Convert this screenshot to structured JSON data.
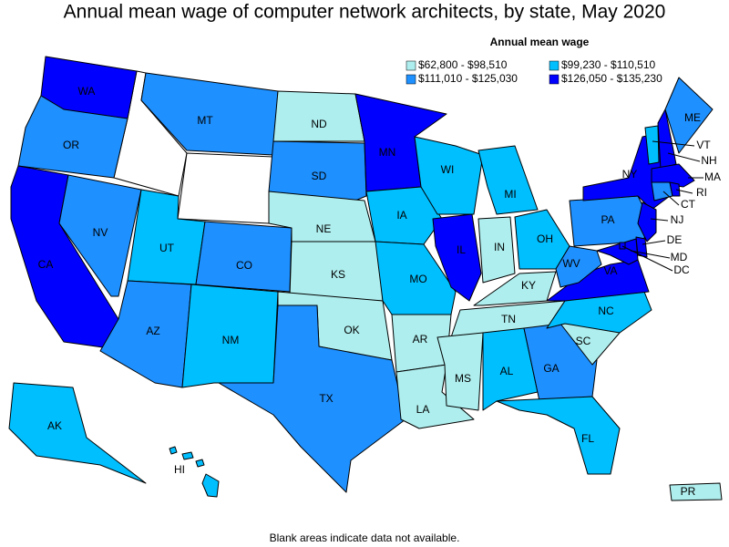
{
  "title": "Annual mean wage of computer network architects, by state, May 2020",
  "legend": {
    "title": "Annual mean wage",
    "items": [
      {
        "label": "$62,800 - $98,510",
        "color": "#afeeee"
      },
      {
        "label": "$99,230 - $110,510",
        "color": "#00bfff"
      },
      {
        "label": "$111,010 - $125,030",
        "color": "#1e90ff"
      },
      {
        "label": "$126,050 - $135,230",
        "color": "#0000ff"
      }
    ]
  },
  "states": [
    {
      "abbr": "WA",
      "bin": 3
    },
    {
      "abbr": "OR",
      "bin": 2
    },
    {
      "abbr": "CA",
      "bin": 3
    },
    {
      "abbr": "NV",
      "bin": 2
    },
    {
      "abbr": "MT",
      "bin": 2
    },
    {
      "abbr": "UT",
      "bin": 1
    },
    {
      "abbr": "CO",
      "bin": 2
    },
    {
      "abbr": "AZ",
      "bin": 2
    },
    {
      "abbr": "NM",
      "bin": 1
    },
    {
      "abbr": "ND",
      "bin": 0
    },
    {
      "abbr": "SD",
      "bin": 2
    },
    {
      "abbr": "NE",
      "bin": 0
    },
    {
      "abbr": "KS",
      "bin": 0
    },
    {
      "abbr": "OK",
      "bin": 0
    },
    {
      "abbr": "TX",
      "bin": 2
    },
    {
      "abbr": "MN",
      "bin": 3
    },
    {
      "abbr": "IA",
      "bin": 1
    },
    {
      "abbr": "MO",
      "bin": 1
    },
    {
      "abbr": "AR",
      "bin": 0
    },
    {
      "abbr": "LA",
      "bin": 0
    },
    {
      "abbr": "WI",
      "bin": 1
    },
    {
      "abbr": "IL",
      "bin": 3
    },
    {
      "abbr": "MI",
      "bin": 1
    },
    {
      "abbr": "IN",
      "bin": 0
    },
    {
      "abbr": "OH",
      "bin": 1
    },
    {
      "abbr": "KY",
      "bin": 0
    },
    {
      "abbr": "TN",
      "bin": 0
    },
    {
      "abbr": "MS",
      "bin": 0
    },
    {
      "abbr": "AL",
      "bin": 1
    },
    {
      "abbr": "GA",
      "bin": 2
    },
    {
      "abbr": "FL",
      "bin": 1
    },
    {
      "abbr": "SC",
      "bin": 0
    },
    {
      "abbr": "NC",
      "bin": 1
    },
    {
      "abbr": "VA",
      "bin": 3
    },
    {
      "abbr": "WV",
      "bin": 2
    },
    {
      "abbr": "PA",
      "bin": 2
    },
    {
      "abbr": "NY",
      "bin": 3
    },
    {
      "abbr": "VT",
      "bin": 1
    },
    {
      "abbr": "NH",
      "bin": 3
    },
    {
      "abbr": "ME",
      "bin": 2
    },
    {
      "abbr": "MA",
      "bin": 3
    },
    {
      "abbr": "CT",
      "bin": 2
    },
    {
      "abbr": "RI",
      "bin": 3
    },
    {
      "abbr": "NJ",
      "bin": 3
    },
    {
      "abbr": "DE",
      "bin": 3
    },
    {
      "abbr": "MD",
      "bin": 3
    },
    {
      "abbr": "DC",
      "bin": 3
    },
    {
      "abbr": "AK",
      "bin": 1
    },
    {
      "abbr": "HI",
      "bin": 1
    },
    {
      "abbr": "PR",
      "bin": 0
    }
  ],
  "footnote": "Blank areas indicate data not available."
}
